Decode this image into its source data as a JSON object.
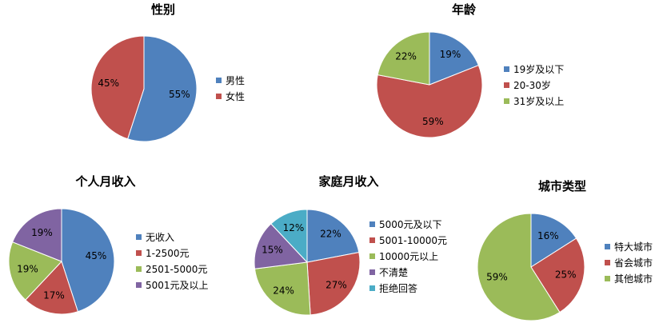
{
  "chart_data": [
    {
      "type": "pie",
      "title": "性别",
      "categories": [
        "男性",
        "女性"
      ],
      "values": [
        55,
        45
      ],
      "labels": [
        "55%",
        "45%"
      ],
      "colors": [
        "#4F81BD",
        "#C0504D"
      ],
      "legend": "right"
    },
    {
      "type": "pie",
      "title": "年龄",
      "categories": [
        "19岁及以下",
        "20-30岁",
        "31岁及以上"
      ],
      "values": [
        19,
        59,
        22
      ],
      "labels": [
        "19%",
        "59%",
        "22%"
      ],
      "colors": [
        "#4F81BD",
        "#C0504D",
        "#9BBB59"
      ],
      "legend": "right"
    },
    {
      "type": "pie",
      "title": "个人月收入",
      "categories": [
        "无收入",
        "1-2500元",
        "2501-5000元",
        "5001元及以上"
      ],
      "values": [
        45,
        17,
        19,
        19
      ],
      "labels": [
        "45%",
        "17%",
        "19%",
        "19%"
      ],
      "colors": [
        "#4F81BD",
        "#C0504D",
        "#9BBB59",
        "#8064A2"
      ],
      "legend": "right"
    },
    {
      "type": "pie",
      "title": "家庭月收入",
      "categories": [
        "5000元及以下",
        "5001-10000元",
        "10000元以上",
        "不清楚",
        "拒绝回答"
      ],
      "values": [
        22,
        27,
        24,
        15,
        12
      ],
      "labels": [
        "22%",
        "27%",
        "24%",
        "15%",
        "12%"
      ],
      "colors": [
        "#4F81BD",
        "#C0504D",
        "#9BBB59",
        "#8064A2",
        "#4BACC6"
      ],
      "legend": "right"
    },
    {
      "type": "pie",
      "title": "城市类型",
      "categories": [
        "特大城市",
        "省会城市",
        "其他城市"
      ],
      "values": [
        16,
        25,
        59
      ],
      "labels": [
        "16%",
        "25%",
        "59%"
      ],
      "colors": [
        "#4F81BD",
        "#C0504D",
        "#9BBB59"
      ],
      "legend": "right"
    }
  ]
}
